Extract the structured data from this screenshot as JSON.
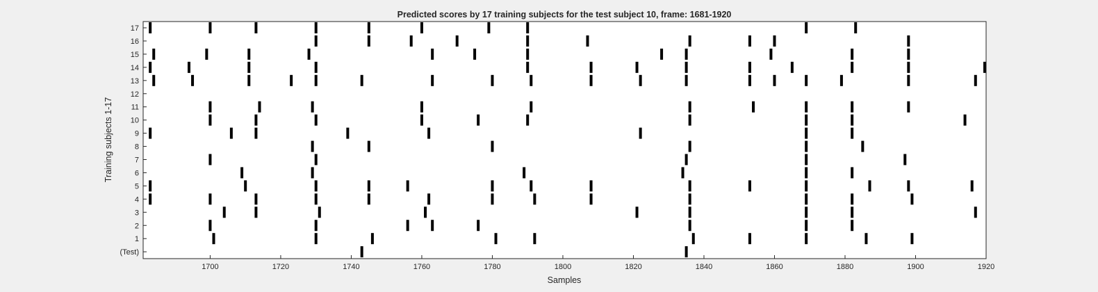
{
  "chart_data": {
    "type": "raster",
    "title": "Predicted scores by 17 training subjects for the test subject 10, frame: 1681-1920",
    "xlabel": "Samples",
    "ylabel": "Training subjects 1-17",
    "xlim": [
      1681,
      1920
    ],
    "x_ticks": [
      "1700",
      "1720",
      "1740",
      "1760",
      "1780",
      "1800",
      "1820",
      "1840",
      "1860",
      "1880",
      "1900",
      "1920"
    ],
    "y_ticks": [
      "17",
      "16",
      "15",
      "14",
      "13",
      "12",
      "11",
      "10",
      "9",
      "8",
      "7",
      "6",
      "5",
      "4",
      "3",
      "2",
      "1",
      "(Test)"
    ],
    "grid": false,
    "mark_color": "#000000",
    "series": [
      {
        "row": "17",
        "x": [
          1683,
          1700,
          1713,
          1730,
          1745,
          1760,
          1779,
          1790,
          1869,
          1883
        ]
      },
      {
        "row": "16",
        "x": [
          1730,
          1745,
          1757,
          1770,
          1790,
          1807,
          1836,
          1853,
          1860,
          1898
        ]
      },
      {
        "row": "15",
        "x": [
          1684,
          1699,
          1711,
          1728,
          1763,
          1775,
          1790,
          1828,
          1835,
          1859,
          1882,
          1898
        ]
      },
      {
        "row": "14",
        "x": [
          1683,
          1694,
          1711,
          1730,
          1790,
          1808,
          1821,
          1835,
          1853,
          1865,
          1882,
          1898,
          1920
        ]
      },
      {
        "row": "13",
        "x": [
          1684,
          1695,
          1711,
          1723,
          1730,
          1743,
          1763,
          1780,
          1791,
          1808,
          1822,
          1835,
          1853,
          1860,
          1869,
          1879,
          1898,
          1917
        ]
      },
      {
        "row": "12",
        "x": []
      },
      {
        "row": "11",
        "x": [
          1700,
          1714,
          1729,
          1760,
          1791,
          1836,
          1854,
          1869,
          1882,
          1898
        ]
      },
      {
        "row": "10",
        "x": [
          1700,
          1713,
          1730,
          1760,
          1776,
          1790,
          1836,
          1869,
          1882,
          1914
        ]
      },
      {
        "row": "9",
        "x": [
          1683,
          1706,
          1713,
          1739,
          1762,
          1822,
          1869,
          1882
        ]
      },
      {
        "row": "8",
        "x": [
          1729,
          1745,
          1780,
          1836,
          1869,
          1885
        ]
      },
      {
        "row": "7",
        "x": [
          1700,
          1730,
          1835,
          1869,
          1897
        ]
      },
      {
        "row": "6",
        "x": [
          1709,
          1729,
          1789,
          1834,
          1869,
          1882
        ]
      },
      {
        "row": "5",
        "x": [
          1683,
          1710,
          1730,
          1745,
          1756,
          1780,
          1791,
          1808,
          1836,
          1853,
          1869,
          1887,
          1898,
          1916
        ]
      },
      {
        "row": "4",
        "x": [
          1683,
          1700,
          1713,
          1730,
          1745,
          1762,
          1780,
          1792,
          1808,
          1836,
          1869,
          1882,
          1899
        ]
      },
      {
        "row": "3",
        "x": [
          1704,
          1713,
          1731,
          1761,
          1821,
          1836,
          1869,
          1882,
          1917
        ]
      },
      {
        "row": "2",
        "x": [
          1700,
          1730,
          1756,
          1763,
          1776,
          1836,
          1869,
          1882
        ]
      },
      {
        "row": "1",
        "x": [
          1701,
          1730,
          1746,
          1781,
          1792,
          1837,
          1853,
          1869,
          1886,
          1899
        ]
      },
      {
        "row": "(Test)",
        "x": [
          1743,
          1835
        ]
      }
    ]
  }
}
